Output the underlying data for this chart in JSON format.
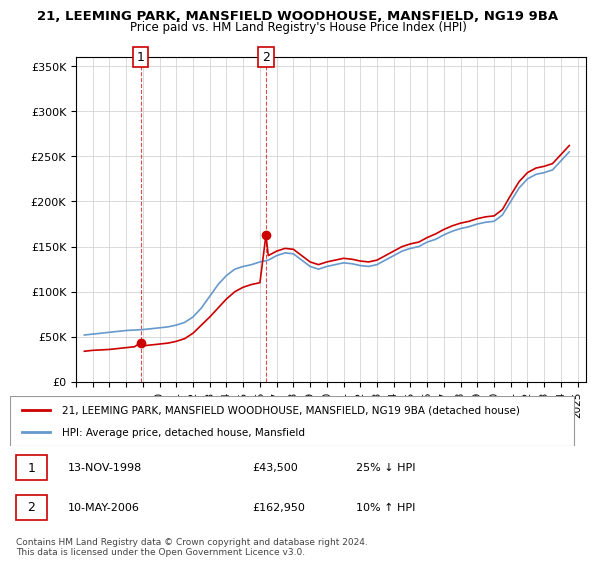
{
  "title_line1": "21, LEEMING PARK, MANSFIELD WOODHOUSE, MANSFIELD, NG19 9BA",
  "title_line2": "Price paid vs. HM Land Registry's House Price Index (HPI)",
  "ylabel_ticks": [
    "£0",
    "£50K",
    "£100K",
    "£150K",
    "£200K",
    "£250K",
    "£300K",
    "£350K"
  ],
  "ytick_values": [
    0,
    50000,
    100000,
    150000,
    200000,
    250000,
    300000,
    350000
  ],
  "ylim": [
    0,
    360000
  ],
  "xlim_start": 1995.0,
  "xlim_end": 2025.5,
  "sale1_date_num": 1998.87,
  "sale1_price": 43500,
  "sale1_label": "1",
  "sale1_table": "13-NOV-1998    £43,500    25% ↓ HPI",
  "sale2_date_num": 2006.36,
  "sale2_price": 162950,
  "sale2_label": "2",
  "sale2_table": "10-MAY-2006    £162,950    10% ↑ HPI",
  "red_line_color": "#cc0000",
  "blue_line_color": "#6699cc",
  "vline_color": "#cc0000",
  "marker_box_color": "#cc0000",
  "legend_label_red": "21, LEEMING PARK, MANSFIELD WOODHOUSE, MANSFIELD, NG19 9BA (detached house)",
  "legend_label_blue": "HPI: Average price, detached house, Mansfield",
  "footnote": "Contains HM Land Registry data © Crown copyright and database right 2024.\nThis data is licensed under the Open Government Licence v3.0.",
  "hpi_data": {
    "years": [
      1995.5,
      1996.0,
      1996.5,
      1997.0,
      1997.5,
      1998.0,
      1998.5,
      1999.0,
      1999.5,
      2000.0,
      2000.5,
      2001.0,
      2001.5,
      2002.0,
      2002.5,
      2003.0,
      2003.5,
      2004.0,
      2004.5,
      2005.0,
      2005.5,
      2006.0,
      2006.5,
      2007.0,
      2007.5,
      2008.0,
      2008.5,
      2009.0,
      2009.5,
      2010.0,
      2010.5,
      2011.0,
      2011.5,
      2012.0,
      2012.5,
      2013.0,
      2013.5,
      2014.0,
      2014.5,
      2015.0,
      2015.5,
      2016.0,
      2016.5,
      2017.0,
      2017.5,
      2018.0,
      2018.5,
      2019.0,
      2019.5,
      2020.0,
      2020.5,
      2021.0,
      2021.5,
      2022.0,
      2022.5,
      2023.0,
      2023.5,
      2024.0,
      2024.5
    ],
    "values": [
      52000,
      53000,
      54000,
      55000,
      56000,
      57000,
      57500,
      58000,
      59000,
      60000,
      61000,
      63000,
      66000,
      72000,
      82000,
      95000,
      108000,
      118000,
      125000,
      128000,
      130000,
      133000,
      135000,
      140000,
      143000,
      142000,
      135000,
      128000,
      125000,
      128000,
      130000,
      132000,
      131000,
      129000,
      128000,
      130000,
      135000,
      140000,
      145000,
      148000,
      150000,
      155000,
      158000,
      163000,
      167000,
      170000,
      172000,
      175000,
      177000,
      178000,
      185000,
      200000,
      215000,
      225000,
      230000,
      232000,
      235000,
      245000,
      255000
    ]
  },
  "red_data": {
    "years": [
      1995.5,
      1996.0,
      1996.5,
      1997.0,
      1997.5,
      1998.0,
      1998.5,
      1998.87,
      1999.0,
      1999.5,
      2000.0,
      2000.5,
      2001.0,
      2001.5,
      2002.0,
      2002.5,
      2003.0,
      2003.5,
      2004.0,
      2004.5,
      2005.0,
      2005.5,
      2006.0,
      2006.36,
      2006.5,
      2007.0,
      2007.5,
      2008.0,
      2008.5,
      2009.0,
      2009.5,
      2010.0,
      2010.5,
      2011.0,
      2011.5,
      2012.0,
      2012.5,
      2013.0,
      2013.5,
      2014.0,
      2014.5,
      2015.0,
      2015.5,
      2016.0,
      2016.5,
      2017.0,
      2017.5,
      2018.0,
      2018.5,
      2019.0,
      2019.5,
      2020.0,
      2020.5,
      2021.0,
      2021.5,
      2022.0,
      2022.5,
      2023.0,
      2023.5,
      2024.0,
      2024.5
    ],
    "values": [
      34000,
      35000,
      35500,
      36000,
      37000,
      38000,
      39000,
      43500,
      40000,
      41000,
      42000,
      43000,
      45000,
      48000,
      54000,
      63000,
      72000,
      82000,
      92000,
      100000,
      105000,
      108000,
      110000,
      162950,
      140000,
      145000,
      148000,
      147000,
      140000,
      133000,
      130000,
      133000,
      135000,
      137000,
      136000,
      134000,
      133000,
      135000,
      140000,
      145000,
      150000,
      153000,
      155000,
      160000,
      164000,
      169000,
      173000,
      176000,
      178000,
      181000,
      183000,
      184000,
      191000,
      207000,
      222000,
      232000,
      237000,
      239000,
      242000,
      252000,
      262000
    ]
  }
}
